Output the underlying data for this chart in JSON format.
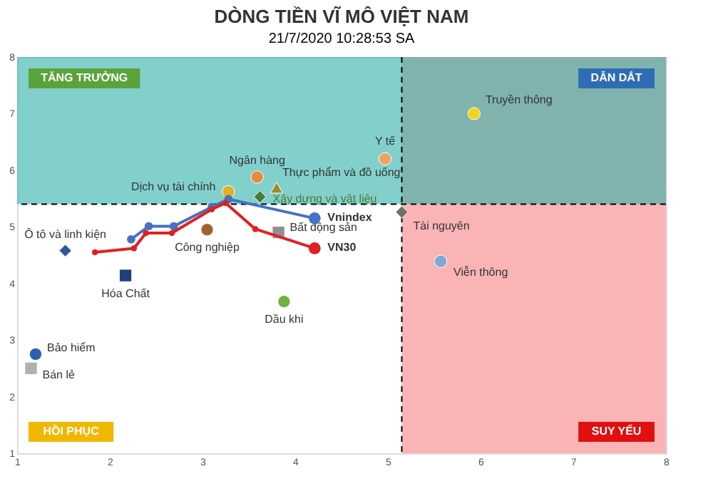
{
  "chart_data": {
    "type": "scatter",
    "title": "DÒNG TIỀN VĨ MÔ VIỆT NAM",
    "subtitle": "21/7/2020 10:28:53 SA",
    "xlim": [
      1,
      8
    ],
    "ylim": [
      1,
      8
    ],
    "xticks": [
      1,
      2,
      3,
      4,
      5,
      6,
      7,
      8
    ],
    "yticks": [
      1,
      2,
      3,
      4,
      5,
      6,
      7,
      8
    ],
    "grid": false,
    "legend": false,
    "bands": [
      {
        "axis": "x",
        "from": 5.15,
        "to": 8,
        "color": "#fbb4b6"
      },
      {
        "axis": "y",
        "from": 5.4,
        "to": 8,
        "color": "#2fb0a8"
      }
    ],
    "ref_lines": [
      {
        "axis": "x",
        "value": 5.15,
        "color": "#000000",
        "line_style": "dashed"
      },
      {
        "axis": "y",
        "value": 5.4,
        "color": "#000000",
        "line_style": "dashed"
      }
    ],
    "annotations": [
      "TĂNG TRƯỞNG",
      "DẪN DẮT",
      "HỒI PHỤC",
      "SUY YẾU"
    ],
    "series": [
      {
        "name": "Truyền thông",
        "type": "scatter",
        "marker": "circle",
        "color": "#f5d21c",
        "x": [
          5.93
        ],
        "values": [
          7.0
        ]
      },
      {
        "name": "Y tế",
        "type": "scatter",
        "marker": "circle",
        "color": "#f0a060",
        "x": [
          4.97
        ],
        "values": [
          6.2
        ]
      },
      {
        "name": "Tài nguyên",
        "type": "scatter",
        "marker": "diamond",
        "color": "#707070",
        "x": [
          5.15
        ],
        "values": [
          5.26
        ]
      },
      {
        "name": "Viễn thông",
        "type": "scatter",
        "marker": "circle",
        "color": "#7fa7d8",
        "x": [
          5.57
        ],
        "values": [
          4.39
        ]
      },
      {
        "name": "Ngân hàng",
        "type": "scatter",
        "marker": "circle",
        "color": "#e88a3c",
        "x": [
          3.59
        ],
        "values": [
          5.88
        ]
      },
      {
        "name": "Thực phẩm và đồ uống",
        "type": "scatter",
        "marker": "triangle",
        "color": "#9c8a2a",
        "x": [
          3.8
        ],
        "values": [
          5.69
        ]
      },
      {
        "name": "Xây dựng và vật liệu",
        "type": "scatter",
        "marker": "diamond",
        "color": "#4a7a3a",
        "x": [
          3.62
        ],
        "values": [
          5.53
        ]
      },
      {
        "name": "Dịch vụ tài chính",
        "type": "scatter",
        "marker": "circle",
        "color": "#e0b020",
        "x": [
          3.28
        ],
        "values": [
          5.62
        ]
      },
      {
        "name": "Bất động sản",
        "type": "scatter",
        "marker": "square",
        "color": "#909090",
        "x": [
          3.82
        ],
        "values": [
          4.9
        ]
      },
      {
        "name": "Công nghiệp",
        "type": "scatter",
        "marker": "circle",
        "color": "#a0642a",
        "x": [
          3.05
        ],
        "values": [
          4.95
        ]
      },
      {
        "name": "Ô tô và linh kiện",
        "type": "scatter",
        "marker": "diamond",
        "color": "#2f5597",
        "x": [
          1.52
        ],
        "values": [
          4.58
        ]
      },
      {
        "name": "Hóa Chất",
        "type": "scatter",
        "marker": "square",
        "color": "#203f7a",
        "x": [
          2.17
        ],
        "values": [
          4.14
        ]
      },
      {
        "name": "Dầu khi",
        "type": "scatter",
        "marker": "circle",
        "color": "#70b040",
        "x": [
          3.88
        ],
        "values": [
          3.68
        ]
      },
      {
        "name": "Bảo hiểm",
        "type": "scatter",
        "marker": "circle",
        "color": "#2f5fb0",
        "x": [
          1.2
        ],
        "values": [
          2.75
        ]
      },
      {
        "name": "Bán lẻ",
        "type": "scatter",
        "marker": "square",
        "color": "#b0b0b0",
        "x": [
          1.15
        ],
        "values": [
          2.5
        ]
      },
      {
        "name": "Vnindex",
        "type": "line",
        "marker": "circle",
        "line_style": "solid",
        "color": "#4472c4",
        "x": [
          2.23,
          2.42,
          2.69,
          3.1,
          3.28,
          4.21
        ],
        "values": [
          4.78,
          5.01,
          5.01,
          5.35,
          5.49,
          5.15
        ]
      },
      {
        "name": "VN30",
        "type": "line",
        "marker": "circle",
        "line_style": "solid",
        "color": "#e02020",
        "x": [
          1.84,
          2.26,
          2.39,
          2.67,
          3.1,
          3.25,
          3.57,
          4.21
        ],
        "values": [
          4.55,
          4.62,
          4.89,
          4.89,
          5.31,
          5.42,
          4.96,
          4.62
        ]
      }
    ]
  }
}
